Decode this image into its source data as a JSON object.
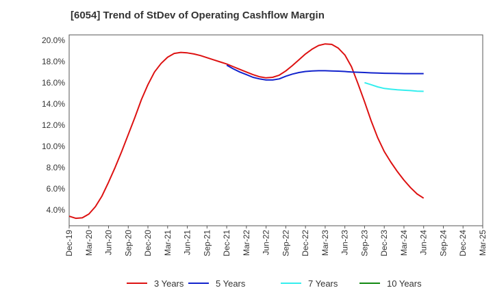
{
  "chart_data": {
    "type": "line",
    "title": "[6054]  Trend of StDev of Operating Cashflow Margin",
    "xlabel": "",
    "ylabel": "",
    "x_ticks": [
      "Dec-19",
      "Mar-20",
      "Jun-20",
      "Sep-20",
      "Dec-20",
      "Mar-21",
      "Jun-21",
      "Sep-21",
      "Dec-21",
      "Mar-22",
      "Jun-22",
      "Sep-22",
      "Dec-22",
      "Mar-23",
      "Jun-23",
      "Sep-23",
      "Dec-23",
      "Mar-24",
      "Jun-24",
      "Sep-24",
      "Dec-24",
      "Mar-25"
    ],
    "y_ticks": [
      "4.0%",
      "6.0%",
      "8.0%",
      "10.0%",
      "12.0%",
      "14.0%",
      "16.0%",
      "18.0%",
      "20.0%"
    ],
    "xlim": [
      "2019-12",
      "2025-03"
    ],
    "ylim": [
      2.5,
      20.5
    ],
    "y_unit": "%",
    "grid": true,
    "legend_position": "bottom",
    "series": [
      {
        "name": "3 Years",
        "color": "#dd1111",
        "points": [
          [
            "2019-12",
            3.4
          ],
          [
            "2020-01",
            3.2
          ],
          [
            "2020-02",
            3.25
          ],
          [
            "2020-03",
            3.6
          ],
          [
            "2020-04",
            4.3
          ],
          [
            "2020-05",
            5.3
          ],
          [
            "2020-06",
            6.6
          ],
          [
            "2020-07",
            8.0
          ],
          [
            "2020-08",
            9.5
          ],
          [
            "2020-09",
            11.1
          ],
          [
            "2020-10",
            12.7
          ],
          [
            "2020-11",
            14.4
          ],
          [
            "2020-12",
            15.8
          ],
          [
            "2021-01",
            17.0
          ],
          [
            "2021-02",
            17.8
          ],
          [
            "2021-03",
            18.4
          ],
          [
            "2021-04",
            18.75
          ],
          [
            "2021-05",
            18.85
          ],
          [
            "2021-06",
            18.8
          ],
          [
            "2021-07",
            18.7
          ],
          [
            "2021-08",
            18.55
          ],
          [
            "2021-09",
            18.35
          ],
          [
            "2021-10",
            18.15
          ],
          [
            "2021-11",
            17.95
          ],
          [
            "2021-12",
            17.75
          ],
          [
            "2022-01",
            17.5
          ],
          [
            "2022-02",
            17.25
          ],
          [
            "2022-03",
            17.0
          ],
          [
            "2022-04",
            16.75
          ],
          [
            "2022-05",
            16.55
          ],
          [
            "2022-06",
            16.45
          ],
          [
            "2022-07",
            16.5
          ],
          [
            "2022-08",
            16.7
          ],
          [
            "2022-09",
            17.1
          ],
          [
            "2022-10",
            17.6
          ],
          [
            "2022-11",
            18.15
          ],
          [
            "2022-12",
            18.7
          ],
          [
            "2023-01",
            19.15
          ],
          [
            "2023-02",
            19.5
          ],
          [
            "2023-03",
            19.65
          ],
          [
            "2023-04",
            19.6
          ],
          [
            "2023-05",
            19.25
          ],
          [
            "2023-06",
            18.6
          ],
          [
            "2023-07",
            17.5
          ],
          [
            "2023-08",
            15.9
          ],
          [
            "2023-09",
            14.2
          ],
          [
            "2023-10",
            12.4
          ],
          [
            "2023-11",
            10.8
          ],
          [
            "2023-12",
            9.5
          ],
          [
            "2024-01",
            8.5
          ],
          [
            "2024-02",
            7.6
          ],
          [
            "2024-03",
            6.8
          ],
          [
            "2024-04",
            6.1
          ],
          [
            "2024-05",
            5.5
          ],
          [
            "2024-06",
            5.1
          ]
        ]
      },
      {
        "name": "5 Years",
        "color": "#1122cc",
        "points": [
          [
            "2021-12",
            17.65
          ],
          [
            "2022-01",
            17.3
          ],
          [
            "2022-02",
            17.0
          ],
          [
            "2022-03",
            16.75
          ],
          [
            "2022-04",
            16.5
          ],
          [
            "2022-05",
            16.35
          ],
          [
            "2022-06",
            16.25
          ],
          [
            "2022-07",
            16.25
          ],
          [
            "2022-08",
            16.35
          ],
          [
            "2022-09",
            16.6
          ],
          [
            "2022-10",
            16.8
          ],
          [
            "2022-11",
            16.95
          ],
          [
            "2022-12",
            17.05
          ],
          [
            "2023-01",
            17.1
          ],
          [
            "2023-02",
            17.12
          ],
          [
            "2023-03",
            17.12
          ],
          [
            "2023-04",
            17.1
          ],
          [
            "2023-05",
            17.08
          ],
          [
            "2023-06",
            17.05
          ],
          [
            "2023-07",
            17.0
          ],
          [
            "2023-08",
            16.98
          ],
          [
            "2023-09",
            16.95
          ],
          [
            "2023-10",
            16.92
          ],
          [
            "2023-11",
            16.9
          ],
          [
            "2023-12",
            16.88
          ],
          [
            "2024-01",
            16.87
          ],
          [
            "2024-02",
            16.86
          ],
          [
            "2024-03",
            16.85
          ],
          [
            "2024-06",
            16.85
          ]
        ]
      },
      {
        "name": "7 Years",
        "color": "#33eeee",
        "points": [
          [
            "2023-09",
            16.0
          ],
          [
            "2023-10",
            15.8
          ],
          [
            "2023-11",
            15.6
          ],
          [
            "2023-12",
            15.45
          ],
          [
            "2024-01",
            15.38
          ],
          [
            "2024-02",
            15.32
          ],
          [
            "2024-03",
            15.28
          ],
          [
            "2024-04",
            15.25
          ],
          [
            "2024-05",
            15.2
          ],
          [
            "2024-06",
            15.18
          ]
        ]
      },
      {
        "name": "10 Years",
        "color": "#118811",
        "points": []
      }
    ]
  }
}
